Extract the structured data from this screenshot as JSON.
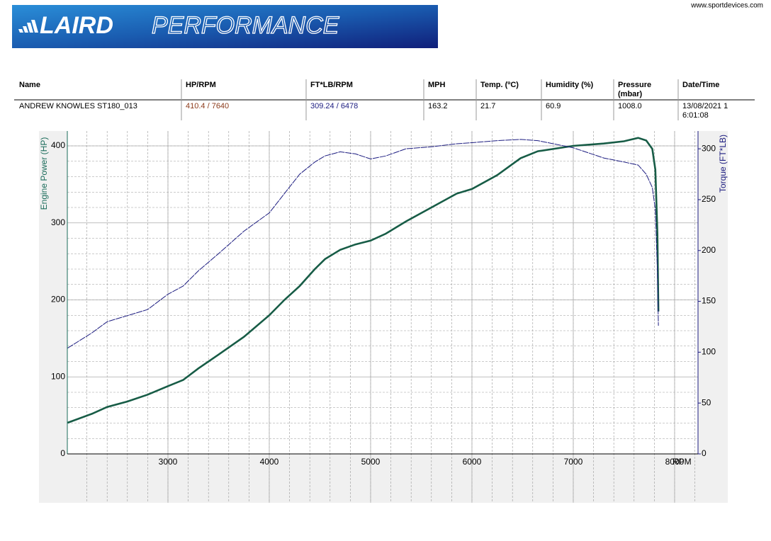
{
  "logo": {
    "brand": "LAIRD",
    "suffix": "PERFORMANCE"
  },
  "url": "www.sportdevices.com",
  "table": {
    "headers": [
      "Name",
      "HP/RPM",
      "FT*LB/RPM",
      "MPH",
      "Temp. (ºC)",
      "Humidity (%)",
      "Pressure (mbar)",
      "Date/Time"
    ],
    "rows": [
      [
        "ANDREW KNOWLES ST180_013",
        "410.4 / 7640",
        "309.24 / 6478",
        "163.2",
        "21.7",
        "60.9",
        "1008.0",
        "13/08/2021 16:01:08"
      ]
    ]
  },
  "chart_data": {
    "type": "line",
    "x_label": "RPM",
    "y_label": "Engine Power (HP)",
    "y2_label": "Torque (FT*LB)",
    "x": [
      2010,
      2250,
      2400,
      2600,
      2800,
      3000,
      3150,
      3300,
      3500,
      3750,
      4000,
      4150,
      4300,
      4450,
      4550,
      4700,
      4850,
      5000,
      5150,
      5350,
      5600,
      5850,
      6000,
      6250,
      6480,
      6650,
      7000,
      7300,
      7500,
      7640,
      7720,
      7780,
      7810,
      7830,
      7840
    ],
    "xlim": [
      2007,
      8231
    ],
    "xticks": [
      3000,
      4000,
      5000,
      6000,
      7000,
      8000
    ],
    "ylim": [
      0,
      419.3
    ],
    "yticks": [
      0,
      100,
      200,
      300,
      400
    ],
    "y2lim": [
      0,
      317.5
    ],
    "y2ticks": [
      0,
      50,
      100,
      150,
      200,
      250,
      300
    ],
    "grid": true,
    "minor_divisions": 5,
    "series": [
      {
        "name": "Engine Power (HP)",
        "color": "#175c46",
        "values": [
          40.5,
          52,
          61,
          68,
          77,
          88,
          96,
          111,
          129,
          152,
          180,
          200,
          218,
          240,
          253,
          265,
          272,
          277,
          286,
          302,
          320,
          338,
          344,
          362,
          384,
          393,
          400,
          403,
          406,
          410.4,
          407,
          396,
          369,
          286,
          185
        ]
      },
      {
        "name": "Torque (FT*LB)",
        "color": "#1c1c80",
        "axis": "y2",
        "values": [
          104,
          119,
          130,
          136,
          142,
          157,
          165,
          180,
          197,
          219,
          237,
          256,
          275,
          287,
          293,
          297,
          295,
          290,
          293,
          300,
          302,
          305,
          306,
          308,
          309.24,
          308,
          301,
          291,
          287,
          284,
          275,
          262,
          240,
          180,
          126
        ]
      }
    ]
  }
}
